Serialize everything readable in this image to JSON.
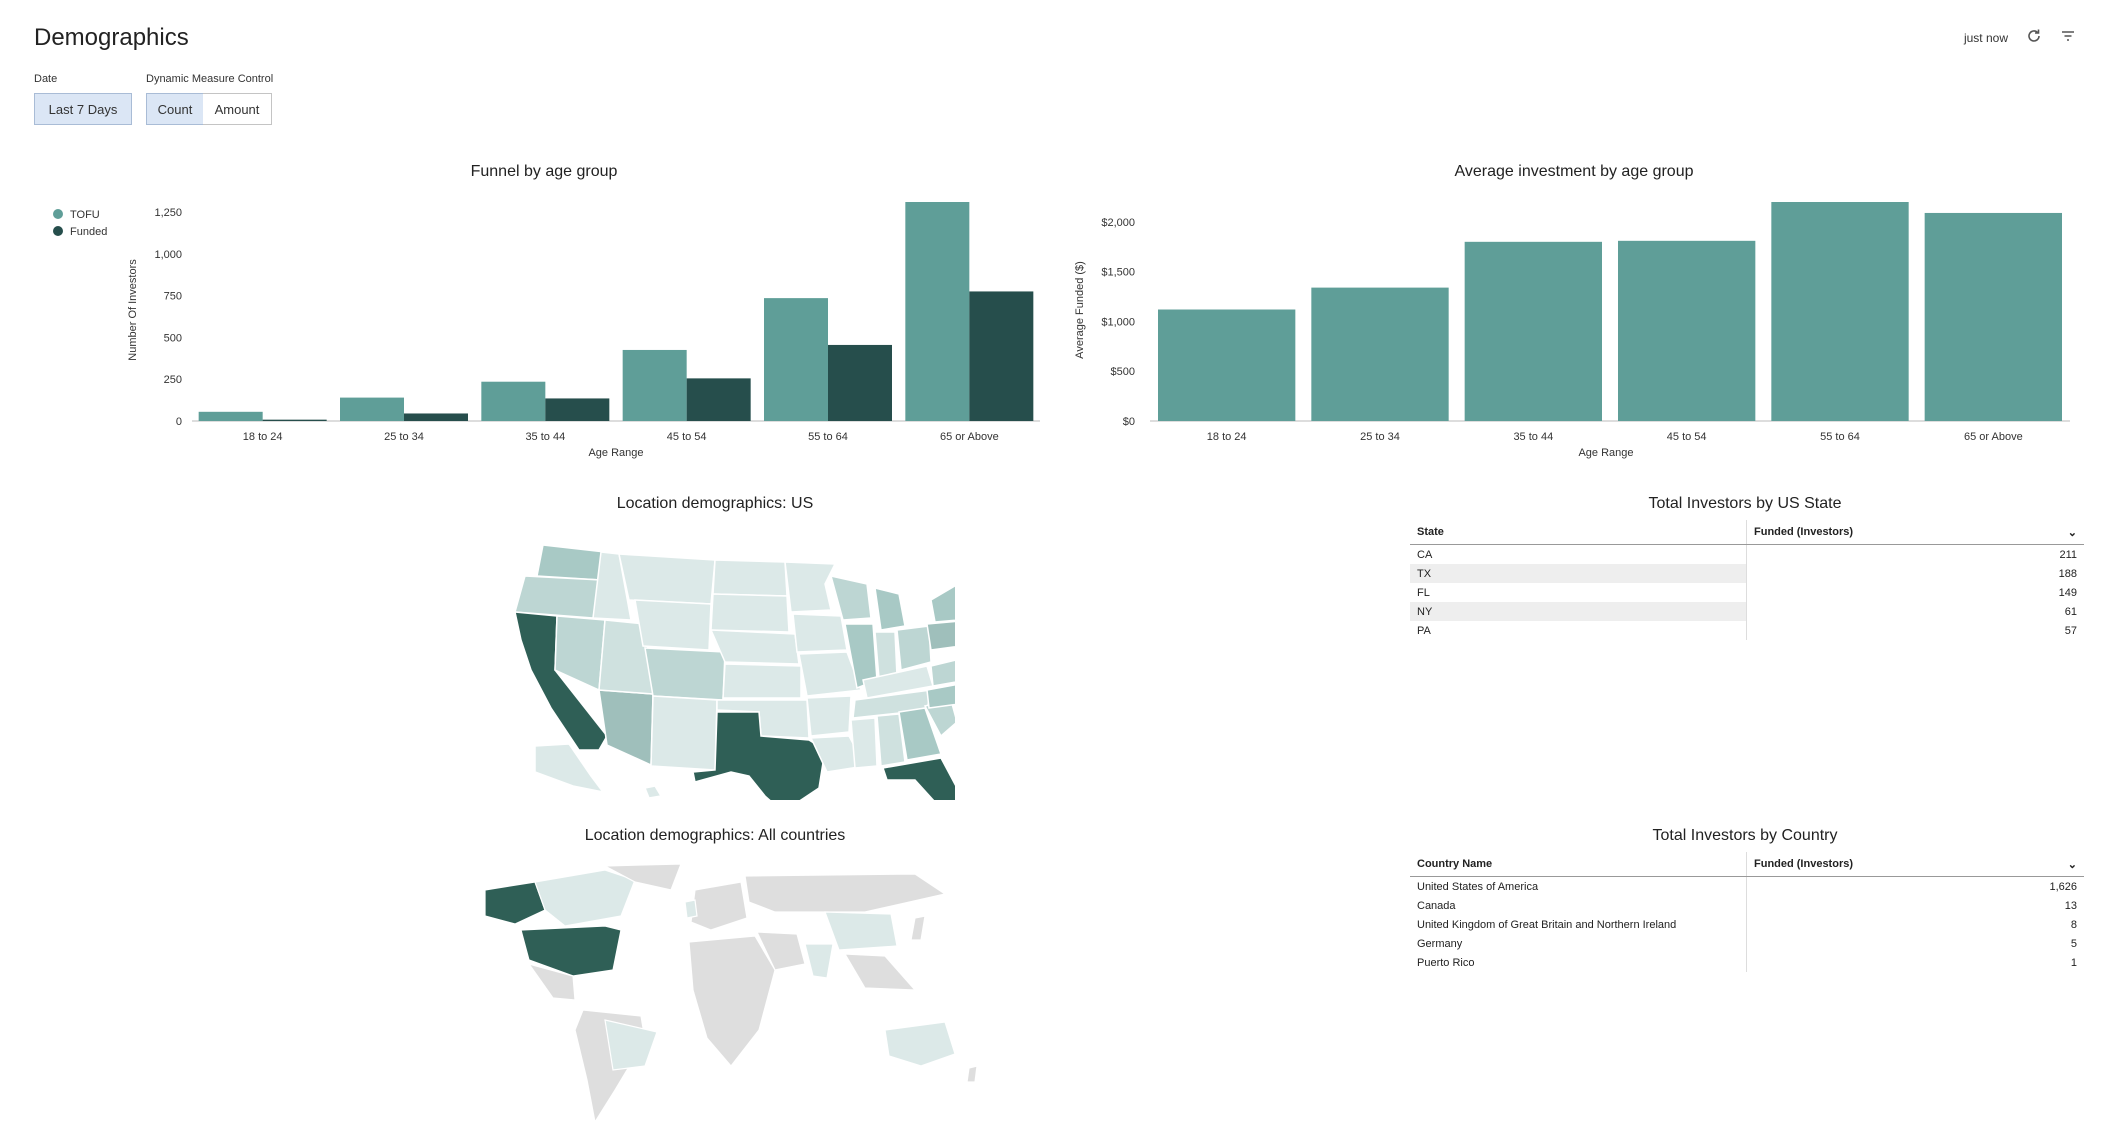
{
  "header": {
    "title": "Demographics",
    "refresh_status": "just now",
    "refresh_icon": "refresh-icon",
    "filter_icon": "filter-icon"
  },
  "controls": {
    "date_label": "Date",
    "date_value": "Last 7 Days",
    "measure_label": "Dynamic Measure Control",
    "measure_options": [
      "Count",
      "Amount"
    ],
    "measure_selected": "Count"
  },
  "colors": {
    "tofu": "#5f9e98",
    "funded": "#264e4c",
    "map_high": "#2f5f56",
    "map_low": "#dce9e8",
    "country_none": "#dedede"
  },
  "chart_data": [
    {
      "type": "bar",
      "title": "Funnel by age group",
      "categories": [
        "18 to 24",
        "25 to 34",
        "35 to 44",
        "45 to 54",
        "55 to 64",
        "65 or Above"
      ],
      "series": [
        {
          "name": "TOFU",
          "values": [
            55,
            140,
            235,
            425,
            735,
            1310
          ]
        },
        {
          "name": "Funded",
          "values": [
            8,
            45,
            135,
            255,
            455,
            775
          ]
        }
      ],
      "xlabel": "Age Range",
      "ylabel": "Number Of Investors",
      "yticks": [
        "0",
        "250",
        "500",
        "750",
        "1,000",
        "1,250"
      ],
      "ylim": [
        0,
        1310
      ],
      "legend": "top-left"
    },
    {
      "type": "bar",
      "title": "Average investment by age group",
      "categories": [
        "18 to 24",
        "25 to 34",
        "35 to 44",
        "45 to 54",
        "55 to 64",
        "65 or Above"
      ],
      "values": [
        1120,
        1340,
        1800,
        1810,
        2200,
        2090
      ],
      "xlabel": "Age Range",
      "ylabel": "Average Funded ($)",
      "yticks": [
        "$0",
        "$500",
        "$1,000",
        "$1,500",
        "$2,000"
      ],
      "ylim": [
        0,
        2200
      ]
    },
    {
      "type": "table",
      "title": "Total Investors by US State",
      "columns": [
        "State",
        "Funded (Investors)"
      ],
      "rows": [
        [
          "CA",
          "211"
        ],
        [
          "TX",
          "188"
        ],
        [
          "FL",
          "149"
        ],
        [
          "NY",
          "61"
        ],
        [
          "PA",
          "57"
        ]
      ]
    },
    {
      "type": "table",
      "title": "Total Investors by Country",
      "columns": [
        "Country Name",
        "Funded (Investors)"
      ],
      "rows": [
        [
          "United States of America",
          "1,626"
        ],
        [
          "Canada",
          "13"
        ],
        [
          "United Kingdom of Great Britain and Northern Ireland",
          "8"
        ],
        [
          "Germany",
          "5"
        ],
        [
          "Puerto Rico",
          "1"
        ]
      ]
    }
  ],
  "maps": {
    "us_title": "Location demographics: US",
    "world_title": "Location demographics: All countries"
  }
}
